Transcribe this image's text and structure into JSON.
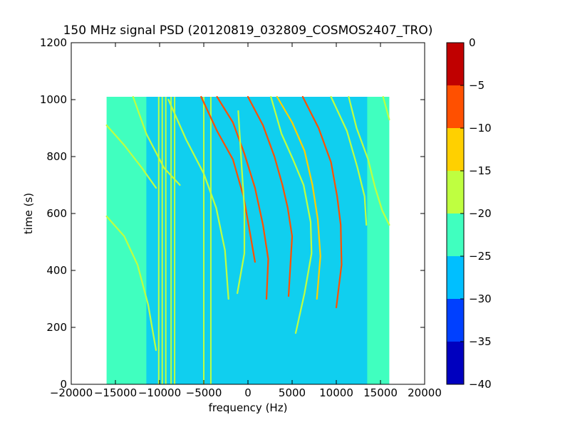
{
  "chart_data": {
    "type": "heatmap",
    "title": "150 MHz signal PSD (20120819_032809_COSMOS2407_TRO)",
    "xlabel": "frequency (Hz)",
    "ylabel": "time (s)",
    "xlim": [
      -20000,
      20000
    ],
    "ylim": [
      0,
      1200
    ],
    "x_ticks": [
      -20000,
      -15000,
      -10000,
      -5000,
      0,
      5000,
      10000,
      15000,
      20000
    ],
    "x_tick_labels": [
      "−20000",
      "−15000",
      "−10000",
      "−5000",
      "0",
      "5000",
      "10000",
      "15000",
      "20000"
    ],
    "y_ticks": [
      0,
      200,
      400,
      600,
      800,
      1000,
      1200
    ],
    "y_tick_labels": [
      "0",
      "200",
      "400",
      "600",
      "800",
      "1000",
      "1200"
    ],
    "data_extent": {
      "x": [
        -16000,
        16000
      ],
      "y": [
        0,
        1010
      ]
    },
    "background_level": -22.5,
    "noise_region_level": -27.5,
    "noise_region_x": [
      -11500,
      13500
    ],
    "grid": false,
    "colorbar": {
      "levels": [
        -40,
        -35,
        -30,
        -25,
        -20,
        -15,
        -10,
        -5,
        0
      ],
      "tick_labels": [
        "−40",
        "−35",
        "−30",
        "−25",
        "−20",
        "−15",
        "−10",
        "−5",
        "0"
      ],
      "colors": [
        "#0000bf",
        "#0040ff",
        "#00bfff",
        "#40ffbf",
        "#bfff40",
        "#ffd000",
        "#ff5000",
        "#c00000"
      ]
    },
    "vertical_lines": [
      {
        "x": -10100,
        "level": -17
      },
      {
        "x": -9700,
        "level": -17
      },
      {
        "x": -9300,
        "level": -18
      },
      {
        "x": -8700,
        "level": -18
      },
      {
        "x": -8300,
        "level": -19
      },
      {
        "x": -5000,
        "level": -17
      },
      {
        "x": -4200,
        "level": -18
      }
    ],
    "traces": [
      {
        "level": -18,
        "points": [
          [
            -16000,
            910
          ],
          [
            -14000,
            840
          ],
          [
            -12000,
            760
          ],
          [
            -10400,
            690
          ]
        ]
      },
      {
        "level": -19,
        "points": [
          [
            -16000,
            590
          ],
          [
            -14000,
            520
          ],
          [
            -12500,
            420
          ],
          [
            -11300,
            280
          ],
          [
            -10400,
            120
          ]
        ]
      },
      {
        "level": -18,
        "points": [
          [
            -13000,
            1010
          ],
          [
            -11500,
            880
          ],
          [
            -9500,
            760
          ],
          [
            -7700,
            700
          ]
        ]
      },
      {
        "level": -17,
        "points": [
          [
            -9000,
            1000
          ],
          [
            -7000,
            860
          ],
          [
            -5000,
            740
          ],
          [
            -3600,
            620
          ],
          [
            -2600,
            470
          ],
          [
            -2200,
            300
          ]
        ]
      },
      {
        "level": -8,
        "points": [
          [
            -5300,
            1010
          ],
          [
            -3500,
            890
          ],
          [
            -1700,
            790
          ],
          [
            -500,
            660
          ],
          [
            300,
            520
          ],
          [
            800,
            430
          ]
        ]
      },
      {
        "level": -10,
        "points": [
          [
            -3500,
            1010
          ],
          [
            -1700,
            920
          ],
          [
            -400,
            810
          ],
          [
            800,
            690
          ],
          [
            1700,
            560
          ],
          [
            2300,
            440
          ],
          [
            2100,
            300
          ]
        ]
      },
      {
        "level": -8,
        "points": [
          [
            0,
            1010
          ],
          [
            1700,
            910
          ],
          [
            3000,
            800
          ],
          [
            3900,
            700
          ],
          [
            4500,
            620
          ],
          [
            5000,
            520
          ],
          [
            4600,
            310
          ]
        ]
      },
      {
        "level": -14,
        "points": [
          [
            3300,
            1010
          ],
          [
            5000,
            920
          ],
          [
            6400,
            820
          ],
          [
            7300,
            700
          ],
          [
            7900,
            580
          ],
          [
            8200,
            450
          ],
          [
            7800,
            300
          ]
        ]
      },
      {
        "level": -10,
        "points": [
          [
            6200,
            1010
          ],
          [
            8000,
            900
          ],
          [
            9400,
            780
          ],
          [
            10100,
            660
          ],
          [
            10500,
            560
          ],
          [
            10600,
            420
          ],
          [
            10000,
            270
          ]
        ]
      },
      {
        "level": -17,
        "points": [
          [
            9400,
            1010
          ],
          [
            11200,
            890
          ],
          [
            12400,
            760
          ],
          [
            13200,
            660
          ],
          [
            13400,
            560
          ]
        ]
      },
      {
        "level": -16,
        "points": [
          [
            11400,
            1010
          ],
          [
            12300,
            900
          ],
          [
            13600,
            790
          ],
          [
            14400,
            690
          ],
          [
            15200,
            610
          ],
          [
            16000,
            560
          ]
        ]
      },
      {
        "level": -17,
        "points": [
          [
            15300,
            1010
          ],
          [
            16000,
            930
          ]
        ]
      },
      {
        "level": -17,
        "points": [
          [
            2600,
            1010
          ],
          [
            3800,
            880
          ],
          [
            5100,
            790
          ],
          [
            6300,
            700
          ],
          [
            7100,
            570
          ],
          [
            7200,
            460
          ],
          [
            6400,
            320
          ],
          [
            5400,
            180
          ]
        ]
      },
      {
        "level": -18,
        "points": [
          [
            -1100,
            960
          ],
          [
            -700,
            760
          ],
          [
            -400,
            620
          ],
          [
            -400,
            460
          ],
          [
            -1200,
            320
          ]
        ]
      }
    ]
  }
}
